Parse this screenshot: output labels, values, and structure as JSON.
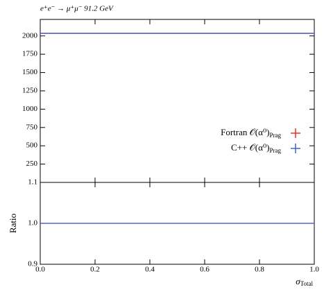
{
  "chart_data": [
    {
      "type": "histogram",
      "title": "e⁺e⁻ → μ⁺μ⁻ 91.2 GeV",
      "bins": [
        0,
        1
      ],
      "ylim": [
        0,
        2225
      ],
      "yticks": [
        250,
        500,
        750,
        1000,
        1250,
        1500,
        1750,
        2000
      ],
      "legend": "lower right",
      "series": [
        {
          "name": "Fortran 𝒪(α⁰)",
          "name_subscript": "Prag",
          "color": "#e8312a",
          "values": [
            2035
          ]
        },
        {
          "name": "C++ 𝒪(α⁰)",
          "name_subscript": "Prag",
          "color": "#3a63d9",
          "values": [
            2035
          ]
        }
      ]
    },
    {
      "type": "histogram",
      "ylabel": "Ratio",
      "xlabel": "σ",
      "xlabel_subscript": "Total",
      "bins": [
        0,
        1
      ],
      "xlim": [
        0,
        1
      ],
      "xticks": [
        {
          "value": 0,
          "label": "0.0"
        },
        0.2,
        0.4,
        0.6,
        0.8,
        {
          "value": 1,
          "label": "1.0"
        }
      ],
      "ylim": [
        0.9,
        1.1
      ],
      "yticks": [
        0.9,
        {
          "value": 1,
          "label": "1.0"
        },
        1.1
      ],
      "series": [
        {
          "color": "#e8312a",
          "values": [
            1
          ]
        },
        {
          "color": "#3a63d9",
          "values": [
            1
          ]
        }
      ]
    }
  ]
}
